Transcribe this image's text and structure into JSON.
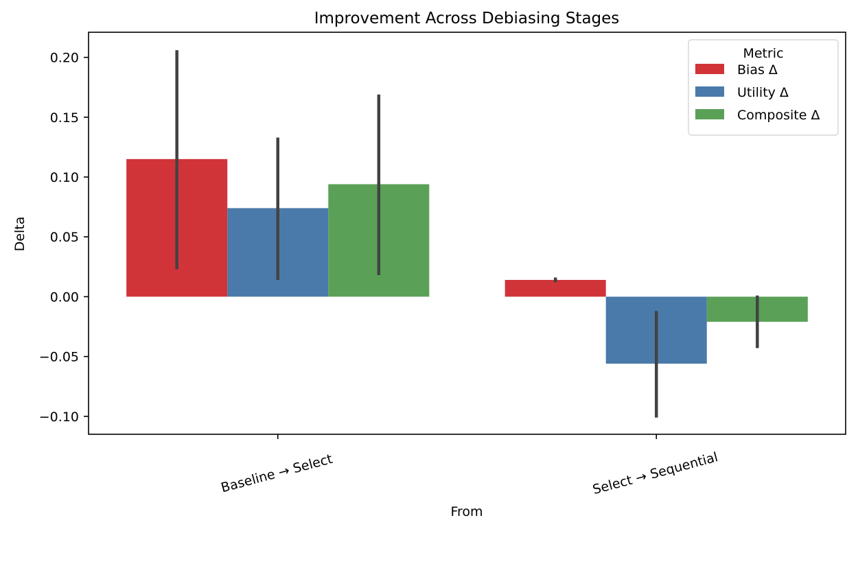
{
  "chart_data": {
    "type": "bar",
    "title": "Improvement Across Debiasing Stages",
    "xlabel": "From",
    "ylabel": "Delta",
    "categories": [
      "Baseline → Select",
      "Select → Sequential"
    ],
    "ylim": [
      -0.115,
      0.221
    ],
    "yticks": [
      -0.1,
      -0.05,
      0.0,
      0.05,
      0.1,
      0.15,
      0.2
    ],
    "ytick_labels": [
      "−0.10",
      "−0.05",
      "0.00",
      "0.05",
      "0.10",
      "0.15",
      "0.20"
    ],
    "grid": false,
    "legend": {
      "title": "Metric",
      "position": "top-right"
    },
    "series": [
      {
        "name": "Bias Δ",
        "color": "#d13438",
        "values": [
          0.115,
          0.014
        ],
        "ci": [
          [
            0.023,
            0.206
          ],
          [
            0.012,
            0.016
          ]
        ]
      },
      {
        "name": "Utility Δ",
        "color": "#4a7aaa",
        "values": [
          0.074,
          -0.056
        ],
        "ci": [
          [
            0.014,
            0.133
          ],
          [
            -0.101,
            -0.012
          ]
        ]
      },
      {
        "name": "Composite Δ",
        "color": "#5aa157",
        "values": [
          0.094,
          -0.021
        ],
        "ci": [
          [
            0.018,
            0.169
          ],
          [
            -0.043,
            0.001
          ]
        ]
      }
    ]
  }
}
